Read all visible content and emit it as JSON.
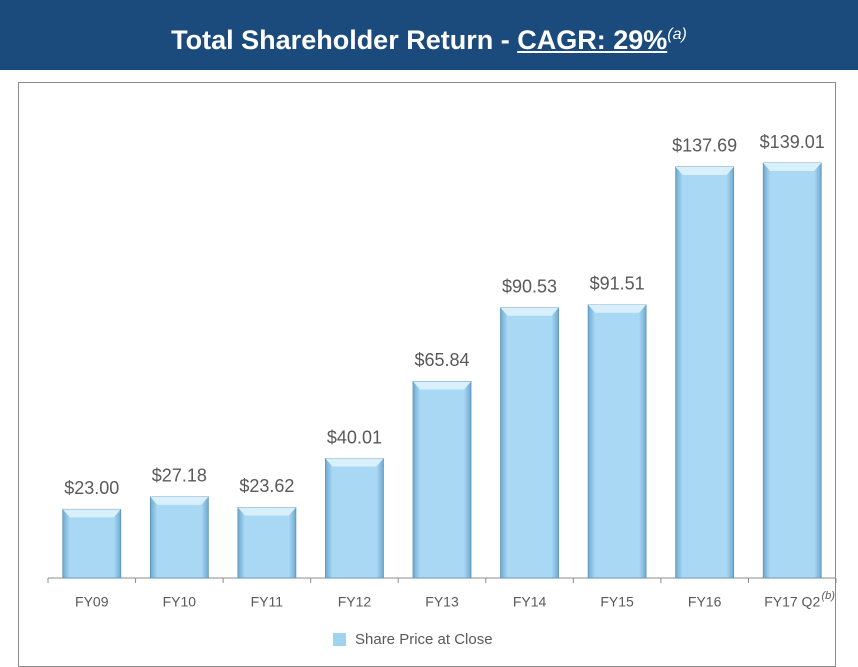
{
  "chart_data": {
    "type": "bar",
    "title": "Total Shareholder Return -",
    "title_highlight": "CAGR: 29%",
    "title_note": "(a)",
    "categories": [
      "FY09",
      "FY10",
      "FY11",
      "FY12",
      "FY13",
      "FY14",
      "FY15",
      "FY16",
      "FY17 Q2"
    ],
    "category_note": "(b)",
    "series": [
      {
        "name": "Share Price at Close",
        "color": "#9fd3f0",
        "values": [
          23.0,
          27.18,
          23.62,
          40.01,
          65.84,
          90.53,
          91.51,
          137.69,
          139.01
        ],
        "value_labels": [
          "$23.00",
          "$27.18",
          "$23.62",
          "$40.01",
          "$65.84",
          "$90.53",
          "$91.51",
          "$137.69",
          "$139.01"
        ]
      }
    ],
    "legend": "bottom"
  }
}
